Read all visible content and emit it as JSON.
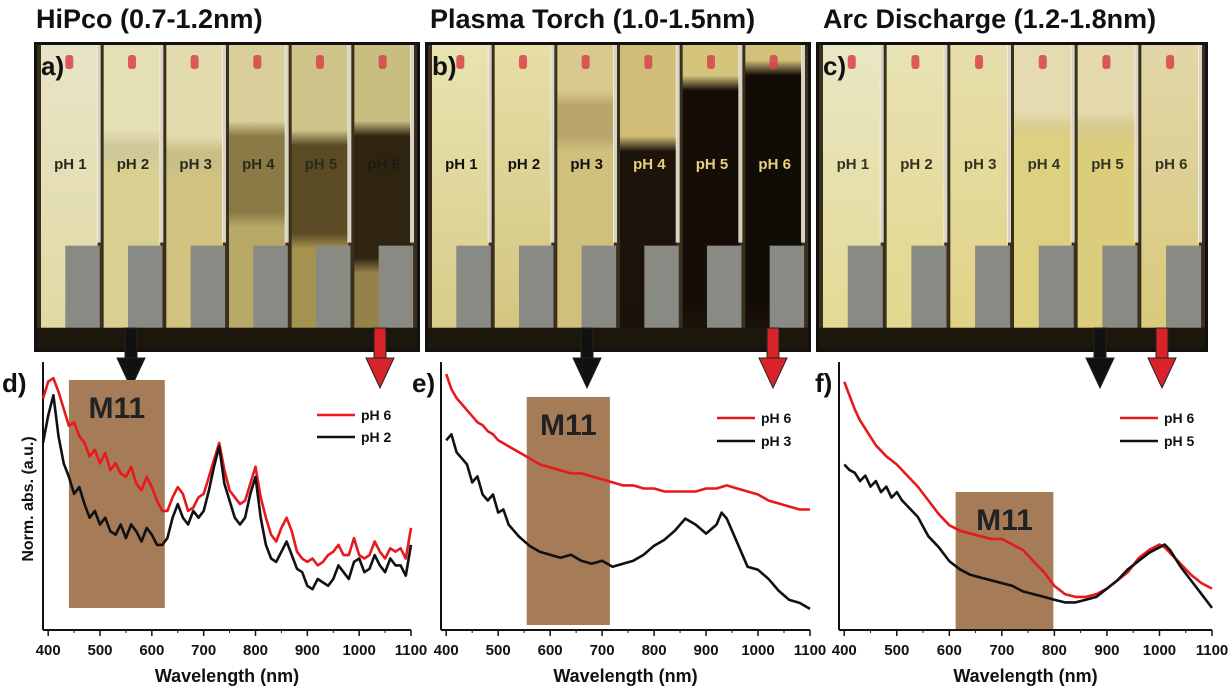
{
  "titles": [
    "HiPco (0.7-1.2nm)",
    "Plasma Torch (1.0-1.5nm)",
    "Arc Discharge (1.2-1.8nm)"
  ],
  "photos": [
    {
      "letter": "a)",
      "labels": [
        "pH 1",
        "pH 2",
        "pH 3",
        "pH 4",
        "pH 5",
        "pH 6"
      ]
    },
    {
      "letter": "b)",
      "labels": [
        "pH 1",
        "pH 2",
        "pH 3",
        "pH 4",
        "pH 5",
        "pH 6"
      ]
    },
    {
      "letter": "c)",
      "labels": [
        "pH 1",
        "pH 2",
        "pH 3",
        "pH 4",
        "pH 5",
        "pH 6"
      ]
    }
  ],
  "colors": {
    "red_series": "#e8191d",
    "black_series": "#111111",
    "m11_box": "#a57c57",
    "arrow_red": "#d8232a",
    "arrow_black": "#111111"
  },
  "chart_data": [
    {
      "type": "line",
      "panel": "d)",
      "xlabel": "Wavelength (nm)",
      "ylabel": "Norm. abs. (a.u.)",
      "xlim": [
        390,
        1100
      ],
      "xticks": [
        400,
        500,
        600,
        700,
        800,
        900,
        1000,
        1100
      ],
      "band": {
        "label": "M11",
        "x": [
          440,
          625
        ]
      },
      "series": [
        {
          "name": "pH 6",
          "color": "#e8191d",
          "x": [
            390,
            400,
            410,
            420,
            430,
            440,
            450,
            460,
            470,
            480,
            490,
            500,
            510,
            520,
            530,
            540,
            550,
            560,
            570,
            580,
            590,
            600,
            610,
            620,
            630,
            640,
            650,
            660,
            670,
            680,
            690,
            700,
            710,
            720,
            730,
            740,
            750,
            760,
            770,
            780,
            790,
            800,
            810,
            820,
            830,
            840,
            850,
            860,
            870,
            880,
            890,
            900,
            910,
            920,
            930,
            940,
            950,
            960,
            970,
            980,
            990,
            1000,
            1010,
            1020,
            1030,
            1040,
            1050,
            1060,
            1070,
            1080,
            1090,
            1100
          ],
          "y": [
            0.93,
            0.98,
            0.99,
            0.95,
            0.9,
            0.85,
            0.86,
            0.82,
            0.8,
            0.76,
            0.78,
            0.74,
            0.77,
            0.72,
            0.74,
            0.71,
            0.7,
            0.73,
            0.68,
            0.66,
            0.7,
            0.67,
            0.63,
            0.6,
            0.6,
            0.64,
            0.67,
            0.65,
            0.6,
            0.61,
            0.64,
            0.65,
            0.7,
            0.75,
            0.8,
            0.72,
            0.66,
            0.64,
            0.62,
            0.63,
            0.68,
            0.73,
            0.64,
            0.58,
            0.53,
            0.51,
            0.55,
            0.58,
            0.54,
            0.48,
            0.46,
            0.45,
            0.46,
            0.44,
            0.45,
            0.47,
            0.48,
            0.5,
            0.47,
            0.47,
            0.52,
            0.47,
            0.46,
            0.47,
            0.51,
            0.48,
            0.46,
            0.49,
            0.48,
            0.49,
            0.46,
            0.55
          ]
        },
        {
          "name": "pH 2",
          "color": "#111111",
          "x": [
            390,
            400,
            410,
            420,
            430,
            440,
            450,
            460,
            470,
            480,
            490,
            500,
            510,
            520,
            530,
            540,
            550,
            560,
            570,
            580,
            590,
            600,
            610,
            620,
            630,
            640,
            650,
            660,
            670,
            680,
            690,
            700,
            710,
            720,
            730,
            740,
            750,
            760,
            770,
            780,
            790,
            800,
            810,
            820,
            830,
            840,
            850,
            860,
            870,
            880,
            890,
            900,
            910,
            920,
            930,
            940,
            950,
            960,
            970,
            980,
            990,
            1000,
            1010,
            1020,
            1030,
            1040,
            1050,
            1060,
            1070,
            1080,
            1090,
            1100
          ],
          "y": [
            0.8,
            0.88,
            0.94,
            0.82,
            0.74,
            0.7,
            0.65,
            0.67,
            0.62,
            0.58,
            0.6,
            0.56,
            0.58,
            0.54,
            0.53,
            0.56,
            0.52,
            0.56,
            0.54,
            0.51,
            0.55,
            0.53,
            0.5,
            0.5,
            0.52,
            0.58,
            0.62,
            0.58,
            0.56,
            0.6,
            0.58,
            0.6,
            0.66,
            0.73,
            0.79,
            0.68,
            0.63,
            0.58,
            0.56,
            0.58,
            0.65,
            0.7,
            0.58,
            0.5,
            0.46,
            0.45,
            0.48,
            0.51,
            0.47,
            0.43,
            0.42,
            0.38,
            0.37,
            0.4,
            0.39,
            0.38,
            0.4,
            0.44,
            0.42,
            0.4,
            0.45,
            0.46,
            0.42,
            0.43,
            0.47,
            0.44,
            0.42,
            0.46,
            0.44,
            0.44,
            0.41,
            0.5
          ]
        }
      ]
    },
    {
      "type": "line",
      "panel": "e)",
      "xlabel": "Wavelength (nm)",
      "ylabel": "",
      "xlim": [
        390,
        1100
      ],
      "xticks": [
        400,
        500,
        600,
        700,
        800,
        900,
        1000,
        1100
      ],
      "band": {
        "label": "M11",
        "x": [
          555,
          715
        ]
      },
      "series": [
        {
          "name": "pH 6",
          "color": "#e8191d",
          "x": [
            400,
            410,
            420,
            430,
            440,
            450,
            460,
            470,
            480,
            490,
            500,
            520,
            540,
            560,
            580,
            600,
            620,
            640,
            660,
            680,
            700,
            720,
            740,
            760,
            780,
            800,
            820,
            840,
            860,
            880,
            900,
            920,
            940,
            960,
            980,
            1000,
            1020,
            1040,
            1060,
            1080,
            1100
          ],
          "y": [
            1.0,
            0.95,
            0.92,
            0.9,
            0.88,
            0.86,
            0.84,
            0.83,
            0.81,
            0.8,
            0.78,
            0.76,
            0.74,
            0.72,
            0.7,
            0.69,
            0.68,
            0.67,
            0.67,
            0.66,
            0.65,
            0.64,
            0.63,
            0.63,
            0.62,
            0.62,
            0.61,
            0.61,
            0.61,
            0.61,
            0.62,
            0.62,
            0.63,
            0.62,
            0.61,
            0.6,
            0.58,
            0.57,
            0.56,
            0.55,
            0.55
          ]
        },
        {
          "name": "pH 3",
          "color": "#111111",
          "x": [
            400,
            410,
            420,
            430,
            440,
            450,
            460,
            470,
            480,
            490,
            500,
            510,
            520,
            540,
            560,
            580,
            600,
            620,
            640,
            660,
            680,
            700,
            720,
            740,
            760,
            780,
            800,
            820,
            840,
            860,
            880,
            900,
            920,
            930,
            940,
            960,
            980,
            1000,
            1020,
            1040,
            1060,
            1080,
            1100
          ],
          "y": [
            0.78,
            0.8,
            0.74,
            0.72,
            0.7,
            0.64,
            0.66,
            0.6,
            0.58,
            0.6,
            0.54,
            0.55,
            0.5,
            0.46,
            0.43,
            0.41,
            0.4,
            0.39,
            0.4,
            0.38,
            0.37,
            0.38,
            0.36,
            0.37,
            0.38,
            0.4,
            0.43,
            0.45,
            0.48,
            0.52,
            0.5,
            0.47,
            0.5,
            0.54,
            0.52,
            0.44,
            0.36,
            0.35,
            0.32,
            0.28,
            0.25,
            0.24,
            0.22
          ]
        }
      ]
    },
    {
      "type": "line",
      "panel": "f)",
      "xlabel": "Wavelength (nm)",
      "ylabel": "",
      "xlim": [
        390,
        1100
      ],
      "xticks": [
        400,
        500,
        600,
        700,
        800,
        900,
        1000,
        1100
      ],
      "band": {
        "label": "M11",
        "x": [
          612,
          798
        ]
      },
      "series": [
        {
          "name": "pH 6",
          "color": "#e8191d",
          "x": [
            400,
            410,
            420,
            430,
            440,
            450,
            460,
            470,
            480,
            500,
            520,
            540,
            560,
            580,
            600,
            620,
            640,
            660,
            680,
            700,
            720,
            740,
            760,
            780,
            800,
            820,
            840,
            860,
            880,
            900,
            920,
            940,
            960,
            980,
            1000,
            1010,
            1020,
            1040,
            1060,
            1080,
            1100
          ],
          "y": [
            1.0,
            0.95,
            0.9,
            0.86,
            0.83,
            0.8,
            0.77,
            0.75,
            0.73,
            0.7,
            0.66,
            0.62,
            0.57,
            0.52,
            0.48,
            0.46,
            0.45,
            0.44,
            0.43,
            0.43,
            0.41,
            0.39,
            0.35,
            0.31,
            0.26,
            0.23,
            0.22,
            0.22,
            0.23,
            0.25,
            0.28,
            0.31,
            0.36,
            0.39,
            0.41,
            0.4,
            0.38,
            0.34,
            0.3,
            0.27,
            0.25
          ]
        },
        {
          "name": "pH 5",
          "color": "#111111",
          "x": [
            400,
            410,
            420,
            430,
            440,
            450,
            460,
            470,
            480,
            490,
            500,
            510,
            520,
            540,
            560,
            580,
            600,
            620,
            640,
            660,
            680,
            700,
            720,
            740,
            760,
            780,
            800,
            820,
            840,
            860,
            880,
            900,
            920,
            940,
            960,
            980,
            1000,
            1010,
            1020,
            1040,
            1060,
            1080,
            1100
          ],
          "y": [
            0.7,
            0.68,
            0.67,
            0.64,
            0.66,
            0.62,
            0.64,
            0.6,
            0.62,
            0.58,
            0.6,
            0.57,
            0.55,
            0.51,
            0.44,
            0.4,
            0.35,
            0.32,
            0.3,
            0.29,
            0.28,
            0.27,
            0.26,
            0.24,
            0.23,
            0.22,
            0.21,
            0.2,
            0.2,
            0.21,
            0.22,
            0.25,
            0.28,
            0.32,
            0.35,
            0.38,
            0.4,
            0.41,
            0.39,
            0.33,
            0.28,
            0.23,
            0.18
          ]
        }
      ]
    }
  ]
}
